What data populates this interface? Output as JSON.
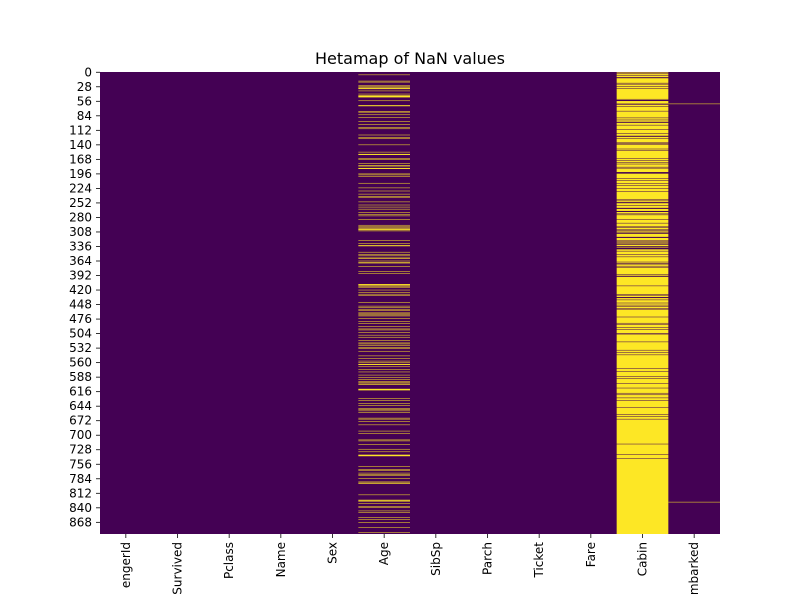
{
  "chart_data": {
    "type": "heatmap",
    "title": "Hetamap of NaN values",
    "xlabel": "",
    "ylabel": "",
    "colorbar": false,
    "colors": {
      "false": "#440154",
      "true": "#fde725"
    },
    "n_rows": 891,
    "columns": [
      "PassengerId",
      "Survived",
      "Pclass",
      "Name",
      "Sex",
      "Age",
      "SibSp",
      "Parch",
      "Ticket",
      "Fare",
      "Cabin",
      "Embarked"
    ],
    "column_tick_labels": [
      "engerId",
      "Survived",
      "Pclass",
      "Name",
      "Sex",
      "Age",
      "SibSp",
      "Parch",
      "Ticket",
      "Fare",
      "Cabin",
      "mbarked"
    ],
    "row_ticks": [
      "0",
      "28",
      "56",
      "84",
      "112",
      "140",
      "168",
      "196",
      "224",
      "252",
      "280",
      "308",
      "336",
      "364",
      "392",
      "420",
      "448",
      "476",
      "504",
      "532",
      "560",
      "588",
      "616",
      "644",
      "672",
      "700",
      "728",
      "756",
      "784",
      "812",
      "840",
      "868"
    ],
    "missing_rows": {
      "Age": [
        5,
        17,
        19,
        26,
        28,
        29,
        31,
        32,
        36,
        42,
        45,
        46,
        47,
        48,
        55,
        64,
        65,
        76,
        77,
        82,
        87,
        95,
        101,
        107,
        109,
        121,
        126,
        128,
        140,
        154,
        158,
        159,
        166,
        168,
        176,
        180,
        181,
        185,
        186,
        196,
        198,
        201,
        214,
        223,
        229,
        235,
        240,
        241,
        250,
        256,
        260,
        264,
        270,
        274,
        277,
        284,
        295,
        298,
        300,
        301,
        303,
        304,
        306,
        324,
        330,
        334,
        335,
        347,
        351,
        354,
        358,
        359,
        364,
        367,
        368,
        375,
        384,
        388,
        409,
        410,
        411,
        413,
        415,
        420,
        425,
        428,
        431,
        444,
        451,
        454,
        457,
        459,
        464,
        466,
        468,
        470,
        475,
        481,
        485,
        490,
        495,
        497,
        502,
        507,
        511,
        517,
        522,
        524,
        527,
        531,
        533,
        538,
        547,
        552,
        557,
        560,
        563,
        564,
        568,
        573,
        578,
        584,
        589,
        593,
        596,
        598,
        601,
        602,
        611,
        612,
        613,
        629,
        633,
        639,
        643,
        648,
        650,
        653,
        656,
        667,
        669,
        674,
        680,
        692,
        697,
        709,
        711,
        718,
        727,
        732,
        738,
        739,
        740,
        760,
        766,
        768,
        773,
        776,
        778,
        783,
        790,
        792,
        793,
        815,
        825,
        826,
        828,
        832,
        837,
        839,
        846,
        849,
        859,
        863,
        868,
        878,
        888
      ],
      "Cabin": [
        0,
        2,
        4,
        5,
        7,
        8,
        9,
        12,
        13,
        14,
        15,
        16,
        17,
        18,
        19,
        20,
        22,
        24,
        25,
        26,
        28,
        29,
        30,
        32,
        33,
        34,
        35,
        36,
        37,
        38,
        39,
        40,
        41,
        42,
        43,
        44,
        45,
        46,
        47,
        48,
        49,
        50,
        51,
        53,
        56,
        57,
        58,
        59,
        60,
        63,
        64,
        65,
        67,
        68,
        69,
        70,
        71,
        72,
        73,
        74,
        76,
        77,
        78,
        79,
        80,
        81,
        82,
        83,
        84,
        85,
        86,
        87,
        89,
        90,
        91,
        93,
        94,
        95,
        98,
        99,
        100,
        101,
        103,
        104,
        105,
        106,
        107,
        108,
        109,
        111,
        112,
        113,
        114,
        115,
        116,
        117,
        119,
        120,
        121,
        122,
        125,
        126,
        127,
        129,
        130,
        131,
        132,
        133,
        134,
        135,
        138,
        140,
        141,
        142,
        143,
        144,
        145,
        146,
        147,
        149,
        150,
        152,
        153,
        154,
        155,
        156,
        157,
        158,
        159,
        160,
        161,
        162,
        163,
        164,
        165,
        167,
        168,
        169,
        171,
        172,
        173,
        175,
        176,
        178,
        179,
        180,
        181,
        182,
        184,
        186,
        187,
        188,
        189,
        190,
        191,
        192,
        196,
        197,
        198,
        199,
        200,
        201,
        202,
        203,
        204,
        206,
        207,
        208,
        210,
        211,
        212,
        213,
        214,
        216,
        217,
        219,
        220,
        221,
        222,
        223,
        225,
        226,
        227,
        228,
        229,
        231,
        232,
        233,
        234,
        235,
        236,
        237,
        238,
        239,
        240,
        241,
        242,
        243,
        244,
        246,
        247,
        249,
        250,
        253,
        254,
        255,
        256,
        258,
        259,
        260,
        261,
        264,
        265,
        266,
        267,
        270,
        271,
        272,
        274,
        276,
        277,
        278,
        279,
        280,
        281,
        282,
        283,
        285,
        286,
        287,
        288,
        289,
        290,
        292,
        293,
        294,
        295,
        296,
        297,
        300,
        301,
        302,
        304,
        306,
        307,
        309,
        312,
        313,
        314,
        315,
        316,
        317,
        320,
        321,
        322,
        323,
        324,
        326,
        328,
        330,
        333,
        334,
        335,
        338,
        342,
        343,
        344,
        346,
        347,
        348,
        349,
        350,
        352,
        353,
        354,
        355,
        357,
        358,
        359,
        360,
        361,
        362,
        363,
        364,
        365,
        367,
        368,
        371,
        372,
        373,
        375,
        376,
        378,
        379,
        380,
        381,
        382,
        383,
        384,
        385,
        386,
        387,
        388,
        389,
        391,
        392,
        395,
        396,
        397,
        398,
        399,
        400,
        401,
        402,
        403,
        404,
        405,
        406,
        407,
        408,
        409,
        410,
        411,
        413,
        414,
        415,
        416,
        417,
        418,
        419,
        420,
        421,
        422,
        423,
        424,
        425,
        426,
        427,
        428,
        431,
        432,
        433,
        436,
        437,
        438,
        440,
        441,
        442,
        443,
        444,
        446,
        447,
        448,
        450,
        451,
        453,
        454,
        455,
        458,
        459,
        460,
        461,
        462,
        463,
        464,
        465,
        466,
        467,
        468,
        469,
        470,
        471,
        473,
        474,
        475,
        476,
        477,
        478,
        479,
        480,
        481,
        482,
        483,
        485,
        487,
        488,
        489,
        490,
        491,
        493,
        494,
        495,
        497,
        498,
        499,
        500,
        501,
        502,
        503,
        506,
        507,
        508,
        509,
        510,
        511,
        512,
        513,
        514,
        515,
        516,
        517,
        518,
        519,
        521,
        522,
        523,
        524,
        525,
        526,
        527,
        528,
        529,
        530,
        531,
        532,
        533,
        534,
        535,
        537,
        538,
        539,
        541,
        542,
        543,
        544,
        546,
        547,
        548,
        549,
        550,
        551,
        552,
        553,
        554,
        555,
        556,
        557,
        558,
        559,
        560,
        561,
        562,
        563,
        564,
        565,
        566,
        567,
        568,
        569,
        570,
        572,
        573,
        574,
        575,
        576,
        578,
        579,
        580,
        581,
        582,
        583,
        584,
        585,
        586,
        588,
        589,
        590,
        592,
        593,
        594,
        595,
        596,
        597,
        598,
        599,
        601,
        602,
        603,
        604,
        605,
        606,
        607,
        608,
        610,
        611,
        612,
        613,
        614,
        615,
        616,
        617,
        618,
        620,
        621,
        623,
        624,
        625,
        626,
        627,
        629,
        630,
        631,
        632,
        634,
        635,
        636,
        637,
        638,
        639,
        640,
        641,
        642,
        643,
        644,
        645,
        646,
        648,
        649,
        650,
        651,
        652,
        653,
        654,
        655,
        656,
        657,
        658,
        659,
        661,
        662,
        663,
        665,
        666,
        667,
        668,
        670,
        671,
        672,
        673,
        674,
        675,
        676,
        677,
        678,
        679,
        680,
        681,
        682,
        683,
        684,
        685,
        686,
        687,
        688,
        689,
        690,
        691,
        692,
        693,
        694,
        695,
        696,
        697,
        698,
        699,
        700,
        701,
        702,
        703,
        704,
        705,
        706,
        707,
        708,
        709,
        710,
        711,
        712,
        713,
        714,
        715,
        716,
        718,
        719,
        720,
        721,
        722,
        723,
        724,
        725,
        726,
        727,
        728,
        729,
        730,
        731,
        732,
        733,
        734,
        735,
        736,
        738,
        739,
        740,
        741,
        742,
        743,
        744,
        746,
        747,
        748,
        749,
        750,
        751,
        752,
        753,
        754,
        755,
        756,
        757,
        758,
        759,
        760,
        761,
        762,
        763,
        764,
        765,
        766,
        767,
        768,
        769,
        770,
        771,
        772,
        773,
        774,
        775,
        776,
        777,
        778,
        779,
        780,
        781,
        782,
        783,
        784,
        785,
        786,
        787,
        788,
        789,
        790,
        791,
        792,
        793,
        794,
        795,
        796,
        797,
        798,
        799,
        800,
        801,
        802,
        803,
        804,
        805,
        806,
        807,
        808,
        809,
        810,
        811,
        812,
        813,
        814,
        815,
        816,
        817,
        818,
        819,
        820,
        821,
        822,
        823,
        824,
        825,
        826,
        827,
        828,
        829,
        830,
        831,
        832,
        833,
        834,
        835,
        836,
        837,
        838,
        839,
        840,
        841,
        842,
        843,
        844,
        845,
        846,
        847,
        848,
        849,
        850,
        851,
        852,
        853,
        854,
        855,
        856,
        857,
        858,
        859,
        860,
        861,
        862,
        863,
        864,
        865,
        866,
        867,
        868,
        869,
        870,
        871,
        872,
        873,
        874,
        875,
        876,
        877,
        878,
        879,
        880,
        881,
        882,
        883,
        884,
        885,
        886,
        887,
        888,
        889,
        890
      ],
      "Embarked": [
        61,
        829
      ]
    }
  }
}
